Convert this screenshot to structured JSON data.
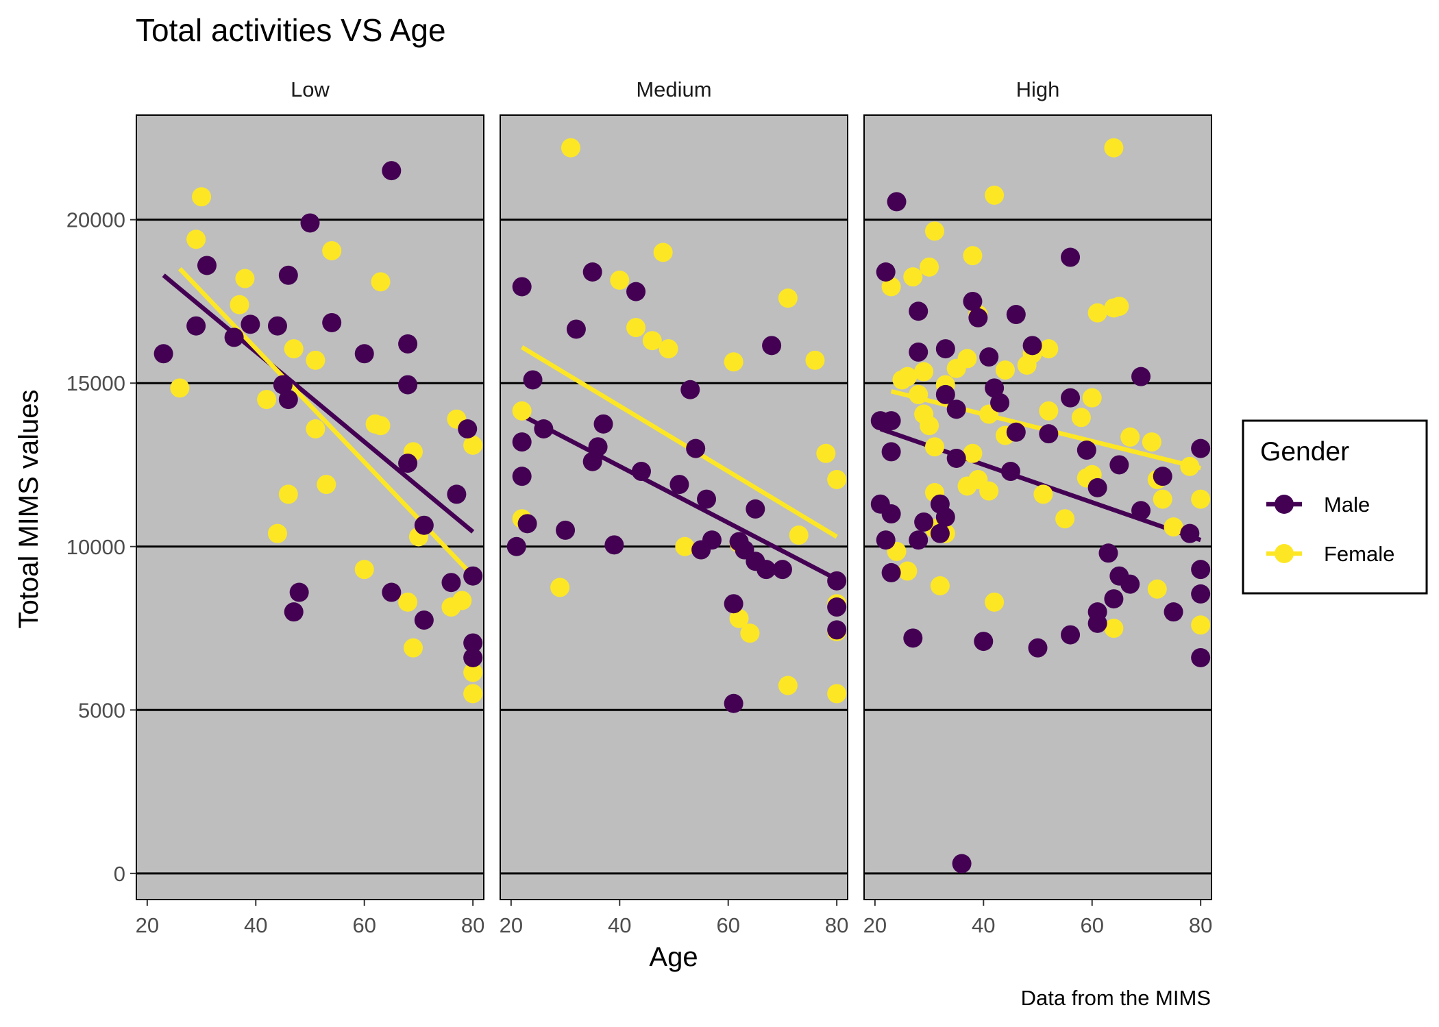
{
  "chart_data": {
    "type": "scatter",
    "title": "Total activities VS Age",
    "xlabel": "Age",
    "ylabel": "Totoal MIMS values",
    "caption": "Data from the MIMS",
    "panels": [
      "Low",
      "Medium",
      "High"
    ],
    "xlim": [
      18,
      82
    ],
    "ylim": [
      -800,
      23200
    ],
    "x_ticks": [
      20,
      40,
      60,
      80
    ],
    "y_ticks": [
      0,
      5000,
      10000,
      15000,
      20000
    ],
    "grid": "horizontal major lines only",
    "panel_background": "#bebebe",
    "legend": {
      "title": "Gender",
      "position": "right",
      "entries": [
        {
          "label": "Male",
          "color": "#440154"
        },
        {
          "label": "Female",
          "color": "#fde725"
        }
      ]
    },
    "series": [
      {
        "name": "Male",
        "color": "#440154",
        "points": {
          "Low": [
            [
              23,
              15900
            ],
            [
              29,
              16750
            ],
            [
              31,
              18600
            ],
            [
              36,
              16400
            ],
            [
              39,
              16800
            ],
            [
              44,
              16750
            ],
            [
              45,
              14950
            ],
            [
              46,
              18300
            ],
            [
              46,
              14500
            ],
            [
              47,
              8000
            ],
            [
              48,
              8600
            ],
            [
              50,
              19900
            ],
            [
              54,
              16850
            ],
            [
              60,
              15900
            ],
            [
              65,
              21500
            ],
            [
              65,
              8600
            ],
            [
              68,
              16200
            ],
            [
              68,
              14950
            ],
            [
              68,
              12550
            ],
            [
              71,
              10650
            ],
            [
              71,
              7750
            ],
            [
              76,
              8900
            ],
            [
              77,
              11600
            ],
            [
              79,
              13600
            ],
            [
              80,
              9100
            ],
            [
              80,
              7050
            ],
            [
              80,
              6600
            ]
          ],
          "Medium": [
            [
              21,
              10000
            ],
            [
              22,
              17950
            ],
            [
              22,
              13200
            ],
            [
              22,
              12150
            ],
            [
              23,
              10700
            ],
            [
              24,
              15100
            ],
            [
              26,
              13600
            ],
            [
              30,
              10500
            ],
            [
              32,
              16650
            ],
            [
              35,
              18400
            ],
            [
              35,
              12600
            ],
            [
              36,
              13050
            ],
            [
              37,
              13750
            ],
            [
              39,
              10050
            ],
            [
              43,
              17800
            ],
            [
              44,
              12300
            ],
            [
              51,
              11900
            ],
            [
              53,
              14800
            ],
            [
              54,
              13000
            ],
            [
              55,
              9900
            ],
            [
              56,
              11450
            ],
            [
              57,
              10200
            ],
            [
              61,
              8250
            ],
            [
              61,
              5200
            ],
            [
              62,
              10150
            ],
            [
              63,
              9900
            ],
            [
              65,
              11150
            ],
            [
              65,
              9550
            ],
            [
              67,
              9300
            ],
            [
              68,
              16150
            ],
            [
              70,
              9300
            ],
            [
              80,
              8950
            ],
            [
              80,
              8150
            ],
            [
              80,
              7450
            ]
          ],
          "High": [
            [
              21,
              13850
            ],
            [
              21,
              11300
            ],
            [
              22,
              18400
            ],
            [
              22,
              10200
            ],
            [
              23,
              13850
            ],
            [
              23,
              12900
            ],
            [
              23,
              11000
            ],
            [
              23,
              9200
            ],
            [
              24,
              20550
            ],
            [
              27,
              7200
            ],
            [
              28,
              17200
            ],
            [
              28,
              15950
            ],
            [
              28,
              10200
            ],
            [
              29,
              10750
            ],
            [
              32,
              11300
            ],
            [
              32,
              10400
            ],
            [
              33,
              16050
            ],
            [
              33,
              14650
            ],
            [
              33,
              10900
            ],
            [
              35,
              14200
            ],
            [
              35,
              12700
            ],
            [
              36,
              300
            ],
            [
              38,
              17500
            ],
            [
              39,
              17000
            ],
            [
              40,
              7100
            ],
            [
              41,
              15800
            ],
            [
              42,
              14850
            ],
            [
              43,
              14400
            ],
            [
              45,
              12300
            ],
            [
              46,
              13500
            ],
            [
              46,
              17100
            ],
            [
              49,
              16150
            ],
            [
              50,
              6900
            ],
            [
              52,
              13450
            ],
            [
              56,
              14550
            ],
            [
              56,
              18850
            ],
            [
              56,
              7300
            ],
            [
              59,
              12950
            ],
            [
              61,
              11800
            ],
            [
              61,
              8000
            ],
            [
              61,
              7650
            ],
            [
              63,
              9800
            ],
            [
              64,
              8400
            ],
            [
              65,
              12500
            ],
            [
              65,
              9100
            ],
            [
              67,
              8850
            ],
            [
              69,
              15200
            ],
            [
              69,
              11100
            ],
            [
              73,
              12150
            ],
            [
              75,
              8000
            ],
            [
              78,
              10400
            ],
            [
              80,
              13000
            ],
            [
              80,
              9300
            ],
            [
              80,
              8550
            ],
            [
              80,
              6600
            ]
          ]
        },
        "trend": {
          "Low": [
            [
              23,
              18300
            ],
            [
              80,
              10450
            ]
          ],
          "Medium": [
            [
              21,
              14100
            ],
            [
              80,
              9000
            ]
          ],
          "High": [
            [
              21,
              13600
            ],
            [
              80,
              10200
            ]
          ]
        }
      },
      {
        "name": "Female",
        "color": "#fde725",
        "points": {
          "Low": [
            [
              26,
              14850
            ],
            [
              29,
              19400
            ],
            [
              30,
              20700
            ],
            [
              37,
              17400
            ],
            [
              38,
              18200
            ],
            [
              42,
              14500
            ],
            [
              44,
              10400
            ],
            [
              46,
              11600
            ],
            [
              47,
              16050
            ],
            [
              51,
              15700
            ],
            [
              51,
              13600
            ],
            [
              53,
              11900
            ],
            [
              54,
              19050
            ],
            [
              60,
              9300
            ],
            [
              62,
              13750
            ],
            [
              63,
              13700
            ],
            [
              63,
              18100
            ],
            [
              68,
              8300
            ],
            [
              69,
              6900
            ],
            [
              69,
              12900
            ],
            [
              70,
              10300
            ],
            [
              76,
              8150
            ],
            [
              77,
              13900
            ],
            [
              78,
              8350
            ],
            [
              80,
              13100
            ],
            [
              80,
              6150
            ],
            [
              80,
              5500
            ]
          ],
          "Medium": [
            [
              22,
              14150
            ],
            [
              22,
              10850
            ],
            [
              29,
              8750
            ],
            [
              31,
              22200
            ],
            [
              40,
              18150
            ],
            [
              43,
              16700
            ],
            [
              46,
              16300
            ],
            [
              48,
              19000
            ],
            [
              49,
              16050
            ],
            [
              52,
              10000
            ],
            [
              61,
              15650
            ],
            [
              62,
              10100
            ],
            [
              62,
              7800
            ],
            [
              64,
              7350
            ],
            [
              71,
              5750
            ],
            [
              71,
              17600
            ],
            [
              73,
              10350
            ],
            [
              76,
              15700
            ],
            [
              78,
              12850
            ],
            [
              80,
              12050
            ],
            [
              80,
              8250
            ],
            [
              80,
              7400
            ],
            [
              80,
              5500
            ]
          ],
          "High": [
            [
              23,
              17950
            ],
            [
              24,
              9850
            ],
            [
              25,
              15100
            ],
            [
              26,
              9250
            ],
            [
              26,
              15200
            ],
            [
              27,
              18250
            ],
            [
              28,
              14650
            ],
            [
              29,
              15350
            ],
            [
              29,
              14050
            ],
            [
              30,
              18550
            ],
            [
              30,
              13700
            ],
            [
              31,
              19650
            ],
            [
              31,
              13050
            ],
            [
              31,
              11650
            ],
            [
              31,
              10550
            ],
            [
              32,
              8800
            ],
            [
              33,
              14950
            ],
            [
              33,
              10400
            ],
            [
              35,
              15450
            ],
            [
              37,
              15750
            ],
            [
              37,
              11850
            ],
            [
              38,
              12850
            ],
            [
              38,
              18900
            ],
            [
              39,
              17100
            ],
            [
              39,
              12050
            ],
            [
              41,
              14050
            ],
            [
              41,
              11700
            ],
            [
              42,
              8300
            ],
            [
              42,
              20750
            ],
            [
              44,
              15400
            ],
            [
              44,
              13400
            ],
            [
              48,
              15550
            ],
            [
              49,
              15900
            ],
            [
              51,
              11600
            ],
            [
              52,
              16050
            ],
            [
              52,
              14150
            ],
            [
              55,
              10850
            ],
            [
              58,
              13950
            ],
            [
              59,
              12100
            ],
            [
              60,
              12200
            ],
            [
              60,
              14550
            ],
            [
              61,
              17150
            ],
            [
              64,
              17300
            ],
            [
              64,
              7500
            ],
            [
              65,
              17350
            ],
            [
              64,
              22200
            ],
            [
              67,
              13350
            ],
            [
              71,
              13200
            ],
            [
              72,
              8700
            ],
            [
              72,
              12050
            ],
            [
              73,
              11450
            ],
            [
              75,
              10600
            ],
            [
              78,
              12450
            ],
            [
              80,
              11450
            ],
            [
              80,
              7600
            ]
          ]
        },
        "trend": {
          "Low": [
            [
              26,
              18500
            ],
            [
              80,
              9100
            ]
          ],
          "Medium": [
            [
              22,
              16100
            ],
            [
              80,
              10300
            ]
          ],
          "High": [
            [
              23,
              14750
            ],
            [
              80,
              12400
            ]
          ]
        }
      }
    ]
  }
}
